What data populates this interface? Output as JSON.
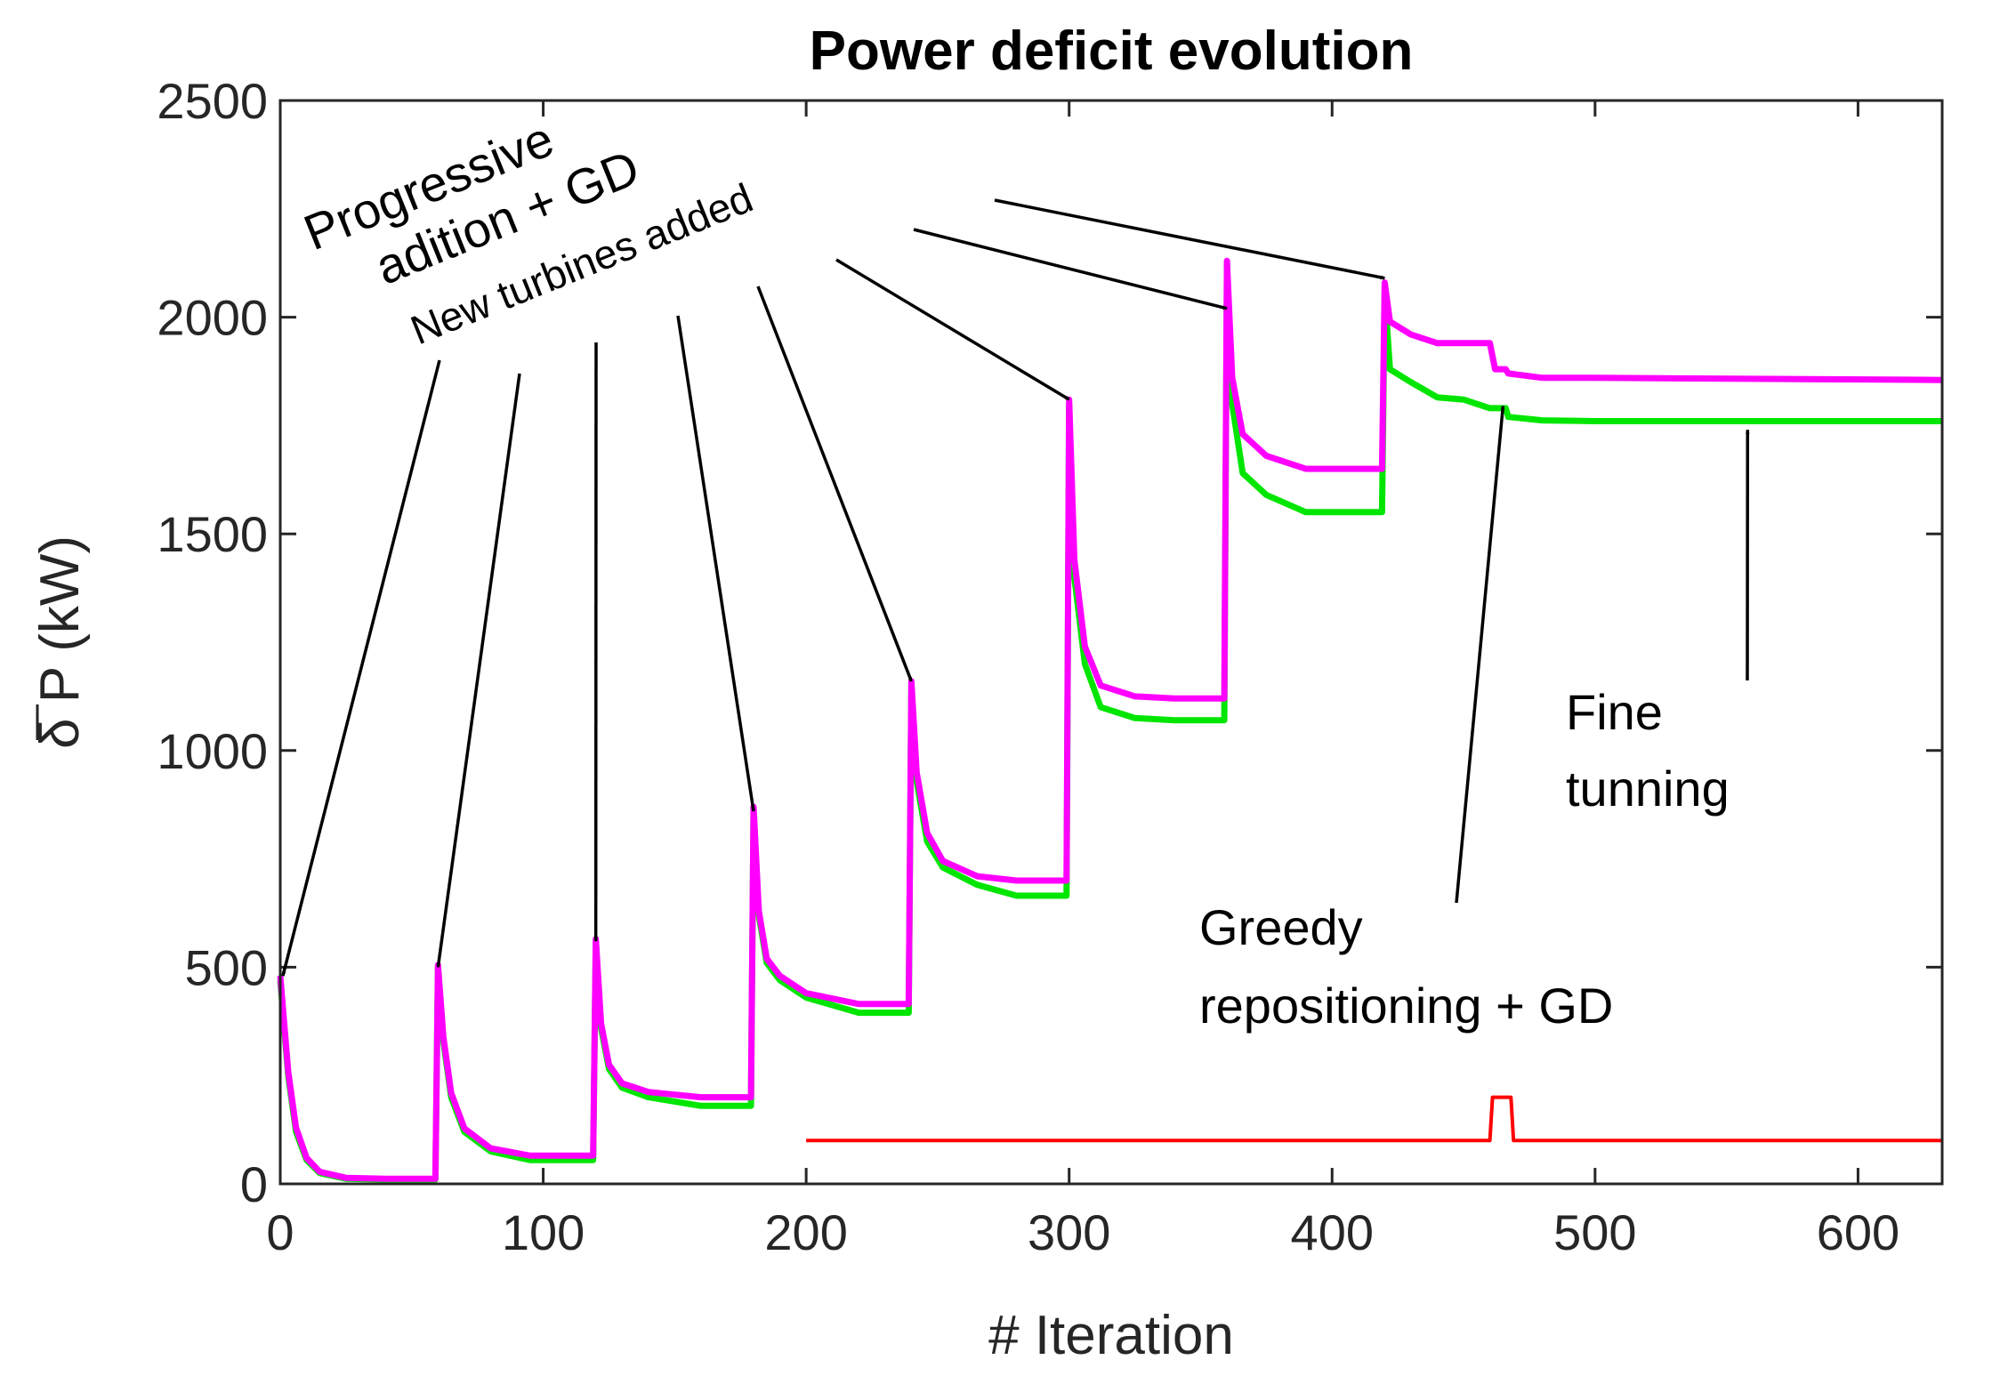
{
  "chart_data": {
    "type": "line",
    "title": "Power deficit evolution",
    "xlabel": "# Iteration",
    "ylabel": "δ P (kW)",
    "xlim": [
      0,
      632
    ],
    "ylim": [
      0,
      2500
    ],
    "xticks": [
      0,
      100,
      200,
      300,
      400,
      500,
      600
    ],
    "yticks": [
      0,
      500,
      1000,
      1500,
      2000,
      2500
    ],
    "xtick_labels": [
      "0",
      "100",
      "200",
      "300",
      "400",
      "500",
      "600"
    ],
    "ytick_labels": [
      "0",
      "500",
      "1000",
      "1500",
      "2000",
      "2500"
    ],
    "grid": false,
    "series": [
      {
        "name": "green",
        "color": "#00e600",
        "points": [
          [
            0,
            470
          ],
          [
            3,
            250
          ],
          [
            6,
            120
          ],
          [
            10,
            55
          ],
          [
            15,
            25
          ],
          [
            25,
            12
          ],
          [
            40,
            10
          ],
          [
            59,
            10
          ],
          [
            60,
            500
          ],
          [
            62,
            330
          ],
          [
            65,
            200
          ],
          [
            70,
            120
          ],
          [
            80,
            75
          ],
          [
            95,
            55
          ],
          [
            119,
            55
          ],
          [
            120,
            560
          ],
          [
            122,
            360
          ],
          [
            125,
            265
          ],
          [
            130,
            222
          ],
          [
            140,
            200
          ],
          [
            160,
            180
          ],
          [
            179,
            180
          ],
          [
            180,
            860
          ],
          [
            182,
            620
          ],
          [
            185,
            510
          ],
          [
            190,
            470
          ],
          [
            200,
            430
          ],
          [
            220,
            395
          ],
          [
            239,
            395
          ],
          [
            240,
            1150
          ],
          [
            242,
            930
          ],
          [
            246,
            790
          ],
          [
            252,
            730
          ],
          [
            265,
            690
          ],
          [
            280,
            665
          ],
          [
            299,
            665
          ],
          [
            300,
            1800
          ],
          [
            302,
            1400
          ],
          [
            306,
            1200
          ],
          [
            312,
            1100
          ],
          [
            325,
            1075
          ],
          [
            340,
            1070
          ],
          [
            359,
            1070
          ],
          [
            360,
            2120
          ],
          [
            362,
            1800
          ],
          [
            366,
            1640
          ],
          [
            375,
            1590
          ],
          [
            390,
            1550
          ],
          [
            419,
            1550
          ],
          [
            420,
            2060
          ],
          [
            422,
            1880
          ],
          [
            430,
            1850
          ],
          [
            440,
            1815
          ],
          [
            450,
            1810
          ],
          [
            460,
            1790
          ],
          [
            462,
            1790
          ],
          [
            466,
            1790
          ],
          [
            467,
            1770
          ],
          [
            480,
            1762
          ],
          [
            500,
            1760
          ],
          [
            632,
            1760
          ]
        ]
      },
      {
        "name": "magenta",
        "color": "#ff00ff",
        "points": [
          [
            0,
            480
          ],
          [
            3,
            260
          ],
          [
            6,
            130
          ],
          [
            10,
            60
          ],
          [
            15,
            28
          ],
          [
            25,
            14
          ],
          [
            40,
            12
          ],
          [
            59,
            12
          ],
          [
            60,
            505
          ],
          [
            62,
            340
          ],
          [
            65,
            210
          ],
          [
            70,
            128
          ],
          [
            80,
            82
          ],
          [
            95,
            65
          ],
          [
            119,
            65
          ],
          [
            120,
            565
          ],
          [
            122,
            370
          ],
          [
            125,
            275
          ],
          [
            130,
            232
          ],
          [
            140,
            212
          ],
          [
            160,
            200
          ],
          [
            179,
            200
          ],
          [
            180,
            870
          ],
          [
            182,
            630
          ],
          [
            185,
            520
          ],
          [
            190,
            480
          ],
          [
            200,
            440
          ],
          [
            220,
            415
          ],
          [
            239,
            415
          ],
          [
            240,
            1160
          ],
          [
            242,
            950
          ],
          [
            246,
            810
          ],
          [
            252,
            745
          ],
          [
            265,
            710
          ],
          [
            280,
            700
          ],
          [
            299,
            700
          ],
          [
            300,
            1810
          ],
          [
            302,
            1440
          ],
          [
            306,
            1240
          ],
          [
            312,
            1150
          ],
          [
            325,
            1125
          ],
          [
            340,
            1120
          ],
          [
            359,
            1120
          ],
          [
            360,
            2130
          ],
          [
            362,
            1860
          ],
          [
            366,
            1730
          ],
          [
            375,
            1680
          ],
          [
            390,
            1650
          ],
          [
            419,
            1650
          ],
          [
            420,
            2080
          ],
          [
            422,
            1990
          ],
          [
            430,
            1960
          ],
          [
            440,
            1940
          ],
          [
            450,
            1940
          ],
          [
            460,
            1940
          ],
          [
            462,
            1880
          ],
          [
            466,
            1880
          ],
          [
            467,
            1870
          ],
          [
            480,
            1860
          ],
          [
            500,
            1860
          ],
          [
            632,
            1855
          ]
        ]
      },
      {
        "name": "red",
        "color": "#ff0000",
        "points": [
          [
            200,
            100
          ],
          [
            460,
            100
          ],
          [
            461,
            200
          ],
          [
            468,
            200
          ],
          [
            469,
            100
          ],
          [
            632,
            100
          ]
        ]
      }
    ],
    "annotations": [
      {
        "lines": [
          "Progressive",
          "adition + GD"
        ],
        "rotation": -22
      },
      {
        "lines": [
          "New turbines added"
        ],
        "rotation": -22
      },
      {
        "lines": [
          "Greedy",
          "repositioning + GD"
        ],
        "rotation": 0
      },
      {
        "lines": [
          "Fine",
          "tunning"
        ],
        "rotation": 0
      }
    ],
    "arrow_targets": [
      [
        1,
        480
      ],
      [
        60,
        500
      ],
      [
        120,
        560
      ],
      [
        180,
        860
      ],
      [
        240,
        1160
      ],
      [
        300,
        1810
      ],
      [
        360,
        2020
      ],
      [
        420,
        2090
      ],
      [
        465,
        1795
      ],
      [
        558,
        1740
      ]
    ]
  }
}
